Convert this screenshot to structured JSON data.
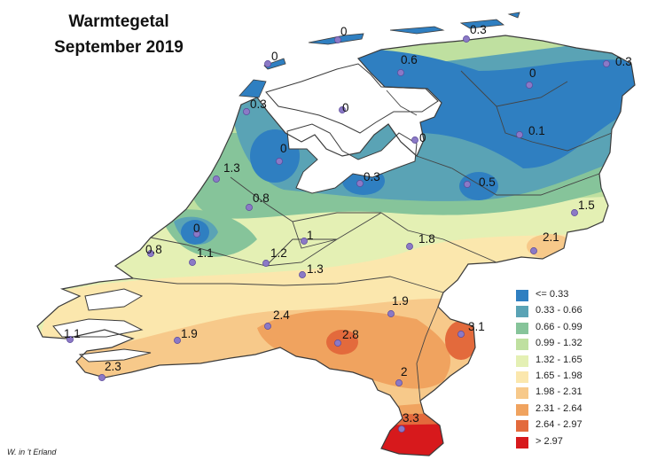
{
  "title_lines": [
    "Warmtegetal",
    "September 2019"
  ],
  "credit": "W. in 't Erland",
  "colors": {
    "water": "#ffffff",
    "border": "#3b3b3b",
    "station_dot": "#8b79c6",
    "station_dot_edge": "#5b4a9a"
  },
  "legend": [
    {
      "label": "<= 0.33",
      "color": "#2f7fc1"
    },
    {
      "label": "0.33 - 0.66",
      "color": "#5aa3b5"
    },
    {
      "label": "0.66 - 0.99",
      "color": "#86c49a"
    },
    {
      "label": "0.99 - 1.32",
      "color": "#bfe0a0"
    },
    {
      "label": "1.32 - 1.65",
      "color": "#e4f0b4"
    },
    {
      "label": "1.65 - 1.98",
      "color": "#fbe7ad"
    },
    {
      "label": "1.98 - 2.31",
      "color": "#f7c98a"
    },
    {
      "label": "2.31 - 2.64",
      "color": "#f0a35f"
    },
    {
      "label": "2.64 - 2.97",
      "color": "#e36a3c"
    },
    {
      "label": "> 2.97",
      "color": "#d7191c"
    }
  ],
  "stations": [
    {
      "value": "0"
    },
    {
      "value": "0"
    },
    {
      "value": "0.3"
    },
    {
      "value": "0.6"
    },
    {
      "value": "0"
    },
    {
      "value": "0.3"
    },
    {
      "value": "0.3"
    },
    {
      "value": "0"
    },
    {
      "value": "0"
    },
    {
      "value": "0"
    },
    {
      "value": "0.1"
    },
    {
      "value": "1.3"
    },
    {
      "value": "0.8"
    },
    {
      "value": "0.3"
    },
    {
      "value": "0.5"
    },
    {
      "value": "0"
    },
    {
      "value": "1.5"
    },
    {
      "value": "1"
    },
    {
      "value": "1.8"
    },
    {
      "value": "2.1"
    },
    {
      "value": "0.8"
    },
    {
      "value": "1.1"
    },
    {
      "value": "1.2"
    },
    {
      "value": "1.3"
    },
    {
      "value": "1.9"
    },
    {
      "value": "2.4"
    },
    {
      "value": "3.1"
    },
    {
      "value": "1.1"
    },
    {
      "value": "1.9"
    },
    {
      "value": "2.8"
    },
    {
      "value": "2.3"
    },
    {
      "value": "2"
    },
    {
      "value": "3.3"
    }
  ]
}
